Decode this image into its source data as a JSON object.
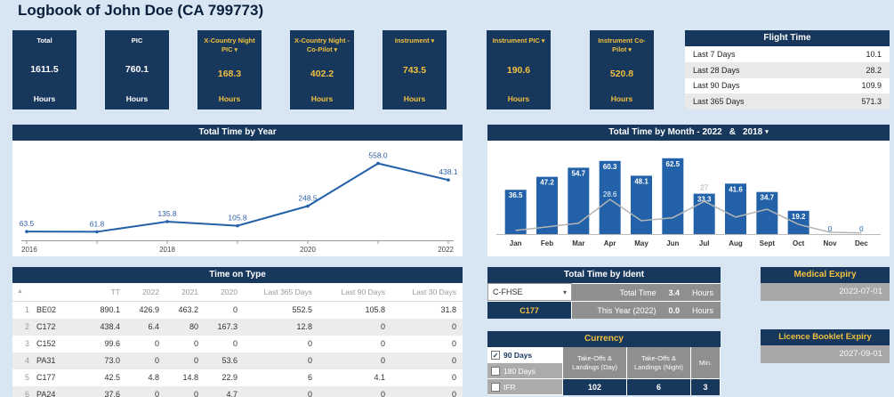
{
  "title": "Logbook of John Doe (CA 799773)",
  "icons": {
    "dropdown_caret": "▾",
    "sort_asc": "▲",
    "check": "✓"
  },
  "colors": {
    "navy": "#17375D",
    "gold": "#F0C03E",
    "bar_blue": "#2361A9",
    "line_gray": "#B5B5B5",
    "background": "#D8E6F3"
  },
  "kpis": [
    {
      "label": "Total",
      "value": "1611.5",
      "unit": "Hours",
      "accent": false,
      "dropdown": false
    },
    {
      "label": "PIC",
      "value": "760.1",
      "unit": "Hours",
      "accent": false,
      "dropdown": false
    },
    {
      "label": "X-Country Night PIC",
      "value": "168.3",
      "unit": "Hours",
      "accent": true,
      "dropdown": true
    },
    {
      "label": "X-Country Night - Co-Pilot",
      "value": "402.2",
      "unit": "Hours",
      "accent": true,
      "dropdown": true
    },
    {
      "label": "Instrument",
      "value": "743.5",
      "unit": "Hours",
      "accent": true,
      "dropdown": true
    },
    {
      "label": "Instrument PIC",
      "value": "190.6",
      "unit": "Hours",
      "accent": true,
      "dropdown": true
    },
    {
      "label": "Instrument Co-Pilot",
      "value": "520.8",
      "unit": "Hours",
      "accent": true,
      "dropdown": true
    }
  ],
  "flight_time": {
    "title": "Flight Time",
    "rows": [
      {
        "label": "Last 7 Days",
        "value": "10.1"
      },
      {
        "label": "Last 28 Days",
        "value": "28.2"
      },
      {
        "label": "Last 90 Days",
        "value": "109.9"
      },
      {
        "label": "Last 365 Days",
        "value": "571.3"
      }
    ]
  },
  "chart_data": [
    {
      "type": "line",
      "title": "Total Time by Year",
      "x": [
        2016,
        2017,
        2018,
        2019,
        2020,
        2021,
        2022
      ],
      "values": [
        63.5,
        61.8,
        135.8,
        105.8,
        248.5,
        558.0,
        438.1
      ],
      "labels": [
        "63.5",
        "61.8",
        "135.8",
        "105.8",
        "248.5",
        "558.0",
        "438.1"
      ],
      "x_tick_positions": [
        2016,
        2018,
        2020,
        2022
      ],
      "x_tick_labels": [
        "2016",
        "2018",
        "2020",
        "2022"
      ],
      "ylim": [
        0,
        620
      ],
      "line_color": "#2361A9",
      "grid": false,
      "legend": false
    },
    {
      "type": "bar",
      "title_prefix": "Total Time by Month - 2022",
      "separator": "&",
      "year_secondary": "2018",
      "categories": [
        "Jan",
        "Feb",
        "Mar",
        "Apr",
        "May",
        "Jun",
        "Jul",
        "Aug",
        "Sept",
        "Oct",
        "Nov",
        "Dec"
      ],
      "series": [
        {
          "name": "2022",
          "render": "bar",
          "color": "#2361A9",
          "values": [
            36.5,
            47.2,
            54.7,
            60.3,
            48.1,
            62.5,
            33.3,
            41.6,
            34.7,
            19.2,
            0,
            0
          ],
          "labels": [
            "36.5",
            "47.2",
            "54.7",
            "60.3",
            "48.1",
            "62.5",
            "33.3",
            "41.6",
            "34.7",
            "19.2",
            "0",
            "0"
          ]
        },
        {
          "name": "2018",
          "render": "line",
          "color": "#B5B5B5",
          "values": [
            3,
            6,
            9,
            28.6,
            11,
            13.5,
            27,
            14,
            20.5,
            8,
            1.5,
            1
          ],
          "labeled_points": [
            {
              "index": 3,
              "label": "28.6",
              "color": "#FFFFFF",
              "position": "on-line"
            },
            {
              "index": 6,
              "label": "27",
              "color": "#A9A9A9",
              "position": "above-bar"
            }
          ]
        }
      ],
      "ylim": [
        0,
        66
      ],
      "grid": false,
      "legend": false
    }
  ],
  "time_on_type": {
    "title": "Time on Type",
    "columns": [
      "TT",
      "2022",
      "2021",
      "2020",
      "Last 365 Days",
      "Last 90 Days",
      "Last 30 Days"
    ],
    "rows": [
      {
        "num": "1",
        "type": "BE02",
        "values": [
          "890.1",
          "426.9",
          "463.2",
          "0",
          "552.5",
          "105.8",
          "31.8"
        ]
      },
      {
        "num": "2",
        "type": "C172",
        "values": [
          "438.4",
          "6.4",
          "80",
          "167.3",
          "12.8",
          "0",
          "0"
        ]
      },
      {
        "num": "3",
        "type": "C152",
        "values": [
          "99.6",
          "0",
          "0",
          "0",
          "0",
          "0",
          "0"
        ]
      },
      {
        "num": "4",
        "type": "PA31",
        "values": [
          "73.0",
          "0",
          "0",
          "53.6",
          "0",
          "0",
          "0"
        ]
      },
      {
        "num": "5",
        "type": "C177",
        "values": [
          "42.5",
          "4.8",
          "14.8",
          "22.9",
          "6",
          "4.1",
          "0"
        ]
      },
      {
        "num": "6",
        "type": "PA24",
        "values": [
          "37.6",
          "0",
          "0",
          "4.7",
          "0",
          "0",
          "0"
        ]
      }
    ]
  },
  "ident": {
    "title": "Total Time by Ident",
    "selected": "C-FHSE",
    "highlighted_ident": "C177",
    "total_label": "Total Time",
    "total_value": "3.4",
    "total_unit": "Hours",
    "year_label": "This Year (2022)",
    "year_value": "0.0",
    "year_unit": "Hours"
  },
  "currency": {
    "title": "Currency",
    "options": [
      {
        "label": "90 Days",
        "checked": true
      },
      {
        "label": "180 Days",
        "checked": false
      },
      {
        "label": "IFR",
        "checked": false
      }
    ],
    "columns": [
      "Take-Offs & Landings (Day)",
      "Take-Offs & Landings (Night)",
      "Min."
    ],
    "values": [
      "102",
      "6",
      "3"
    ]
  },
  "medical": {
    "title": "Medical Expiry",
    "date": "2023-07-01"
  },
  "licence": {
    "title": "Licence Booklet Expiry",
    "date": "2027-09-01"
  }
}
